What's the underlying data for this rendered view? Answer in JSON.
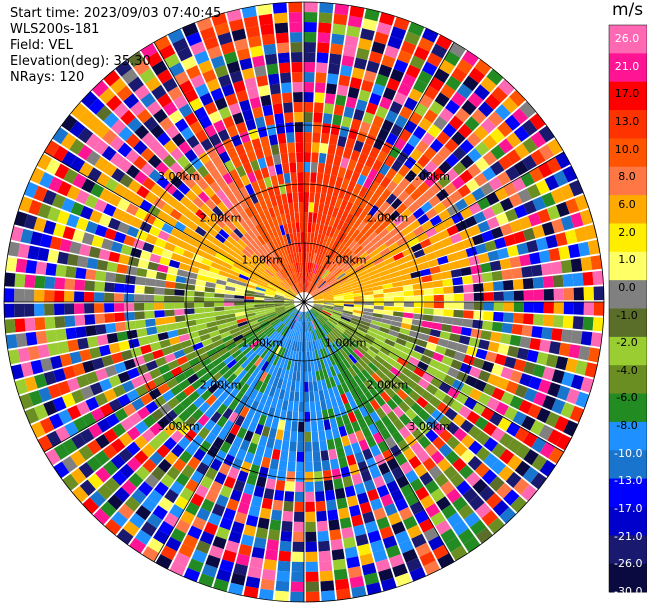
{
  "header": {
    "start_time": "Start time: 2023/09/03 07:40:45",
    "instrument": "WLS200s-181",
    "field": "Field: VEL",
    "elevation": "Elevation(deg): 35.30",
    "nrays": "NRays: 120"
  },
  "colorbar": {
    "unit": "m/s",
    "labels": [
      "26.0",
      "21.0",
      "17.0",
      "13.0",
      "10.0",
      "8.0",
      "6.0",
      "2.0",
      "1.0",
      "0.0",
      "-1.0",
      "-2.0",
      "-4.0",
      "-6.0",
      "-8.0",
      "-10.0",
      "-13.0",
      "-17.0",
      "-21.0",
      "-26.0",
      "-30.0"
    ],
    "colors": [
      "#ff69b4",
      "#ff1493",
      "#ff0000",
      "#ff3300",
      "#ff5500",
      "#ff7744",
      "#ffaa00",
      "#ffee00",
      "#ffff66",
      "#808080",
      "#5a6e2a",
      "#9acd32",
      "#6b8e23",
      "#228b22",
      "#1e90ff",
      "#1874cd",
      "#0000ff",
      "#0000cd",
      "#191970",
      "#0a0a40"
    ]
  },
  "chart_data": {
    "type": "ppi",
    "field": "VEL",
    "n_rays": 120,
    "range_rings_km": [
      1.0,
      2.0,
      3.0
    ],
    "range_ring_labels": [
      "1.00km",
      "2.00km",
      "3.00km"
    ],
    "velocity_range": [
      -30.0,
      26.0
    ],
    "sector_velocity": [
      {
        "sector": "north",
        "velocity": 13.0
      },
      {
        "sector": "northeast",
        "velocity": 8.0
      },
      {
        "sector": "east",
        "velocity": 1.0
      },
      {
        "sector": "southeast",
        "velocity": -6.0
      },
      {
        "sector": "south",
        "velocity": -10.0
      },
      {
        "sector": "southwest",
        "velocity": -8.0
      },
      {
        "sector": "west",
        "velocity": -2.0
      },
      {
        "sector": "northwest",
        "velocity": 6.0
      }
    ]
  }
}
